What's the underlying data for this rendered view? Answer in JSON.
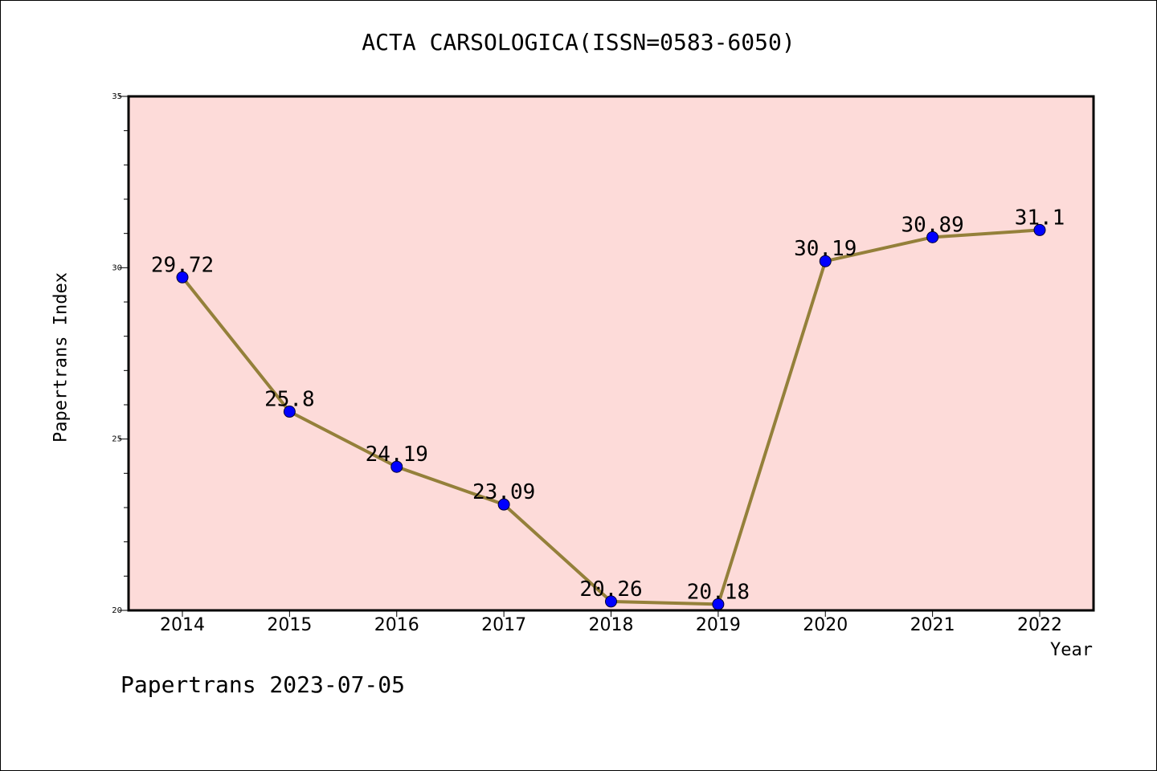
{
  "chart_data": {
    "type": "line",
    "title": "ACTA CARSOLOGICA(ISSN=0583-6050)",
    "xlabel": "Year",
    "ylabel": "Papertrans Index",
    "categories": [
      "2014",
      "2015",
      "2016",
      "2017",
      "2018",
      "2019",
      "2020",
      "2021",
      "2022"
    ],
    "series": [
      {
        "values": [
          29.72,
          25.8,
          24.19,
          23.09,
          20.26,
          20.18,
          30.19,
          30.89,
          31.1
        ]
      }
    ],
    "data_labels": [
      "29.72",
      "25.8",
      "24.19",
      "23.09",
      "20.26",
      "20.18",
      "30.19",
      "30.89",
      "31.1"
    ],
    "ylim": [
      20,
      35
    ],
    "yticks": [
      "20",
      "25",
      "30",
      "35"
    ],
    "grid": false,
    "colors": {
      "plot_background": "#fddbd9",
      "line": "#94803a",
      "marker": "#0000ff"
    }
  },
  "footer": "Papertrans 2023-07-05"
}
